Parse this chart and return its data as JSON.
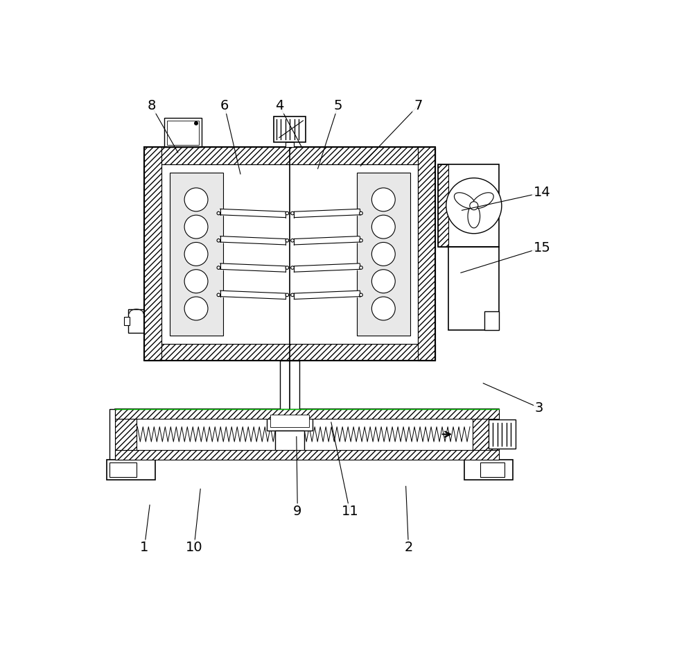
{
  "bg_color": "#ffffff",
  "line_color": "#000000",
  "gray_panel": "#e8e8e8",
  "gray_lower": "#f0f0f0",
  "labels": [
    [
      1,
      105,
      880,
      115,
      800
    ],
    [
      2,
      600,
      880,
      595,
      765
    ],
    [
      3,
      845,
      618,
      740,
      572
    ],
    [
      4,
      358,
      52,
      400,
      130
    ],
    [
      5,
      468,
      52,
      430,
      170
    ],
    [
      6,
      255,
      52,
      285,
      180
    ],
    [
      7,
      618,
      52,
      510,
      165
    ],
    [
      8,
      118,
      52,
      168,
      140
    ],
    [
      9,
      392,
      812,
      390,
      672
    ],
    [
      10,
      198,
      880,
      210,
      770
    ],
    [
      11,
      490,
      812,
      455,
      645
    ],
    [
      14,
      850,
      215,
      700,
      248
    ],
    [
      15,
      850,
      318,
      698,
      365
    ]
  ]
}
